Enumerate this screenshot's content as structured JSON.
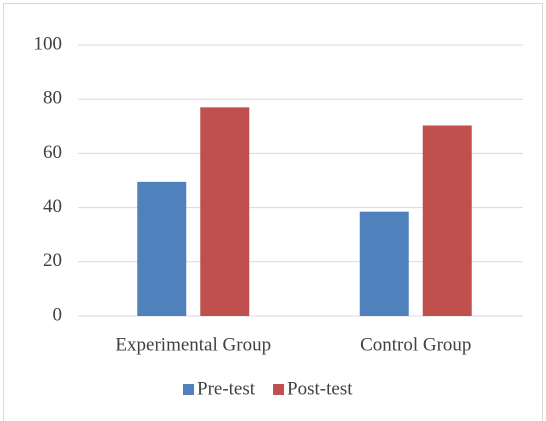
{
  "chart_data": {
    "type": "bar",
    "categories": [
      "Experimental Group",
      "Control Group"
    ],
    "series": [
      {
        "name": "Pre-test",
        "color": "#4f81bd",
        "values": [
          49.5,
          38.5
        ]
      },
      {
        "name": "Post-test",
        "color": "#c0504d",
        "values": [
          77,
          70.3
        ]
      }
    ],
    "ylim": [
      0,
      100
    ],
    "yticks": [
      0,
      20,
      40,
      60,
      80,
      100
    ],
    "grid": true,
    "legend": "bottom"
  }
}
